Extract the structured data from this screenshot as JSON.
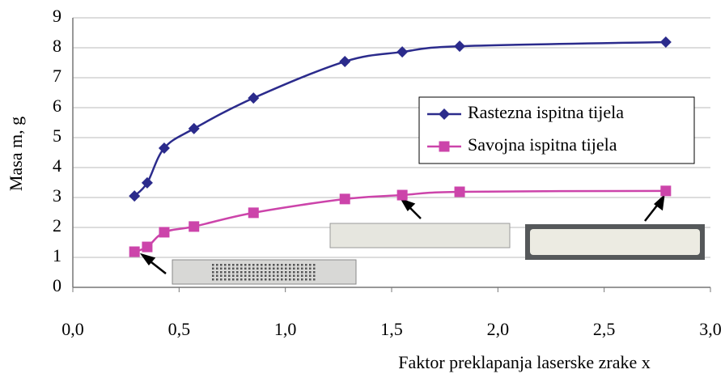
{
  "chart_data": {
    "type": "line",
    "ylabel": "Masa m, g",
    "xlabel": "Faktor preklapanja laserske zrake x",
    "xlim": [
      0,
      3
    ],
    "xticks": [
      {
        "value": 0,
        "label": "0,0"
      },
      {
        "value": 0.5,
        "label": "0,5"
      },
      {
        "value": 1,
        "label": "1,0"
      },
      {
        "value": 1.5,
        "label": "1,5"
      },
      {
        "value": 2,
        "label": "2,0"
      },
      {
        "value": 2.5,
        "label": "2,5"
      },
      {
        "value": 3,
        "label": "3,0"
      }
    ],
    "ylim": [
      0,
      9
    ],
    "yticks": [
      0,
      1,
      2,
      3,
      4,
      5,
      6,
      7,
      8,
      9
    ],
    "grid": true,
    "legend": "center right",
    "series": [
      {
        "name": "Rastezna ispitna tijela",
        "color": "#2b2b8c",
        "marker": "diamond",
        "x": [
          0.29,
          0.35,
          0.43,
          0.57,
          0.85,
          1.28,
          1.55,
          1.82,
          2.79
        ],
        "values": [
          3.05,
          3.49,
          4.65,
          5.3,
          6.32,
          7.54,
          7.86,
          8.05,
          8.19
        ]
      },
      {
        "name": "Savojna ispitna tijela",
        "color": "#cc44aa",
        "marker": "square",
        "x": [
          0.29,
          0.35,
          0.43,
          0.57,
          0.85,
          1.28,
          1.55,
          1.82,
          2.79
        ],
        "values": [
          1.19,
          1.35,
          1.84,
          2.03,
          2.49,
          2.95,
          3.08,
          3.19,
          3.22
        ]
      }
    ]
  }
}
